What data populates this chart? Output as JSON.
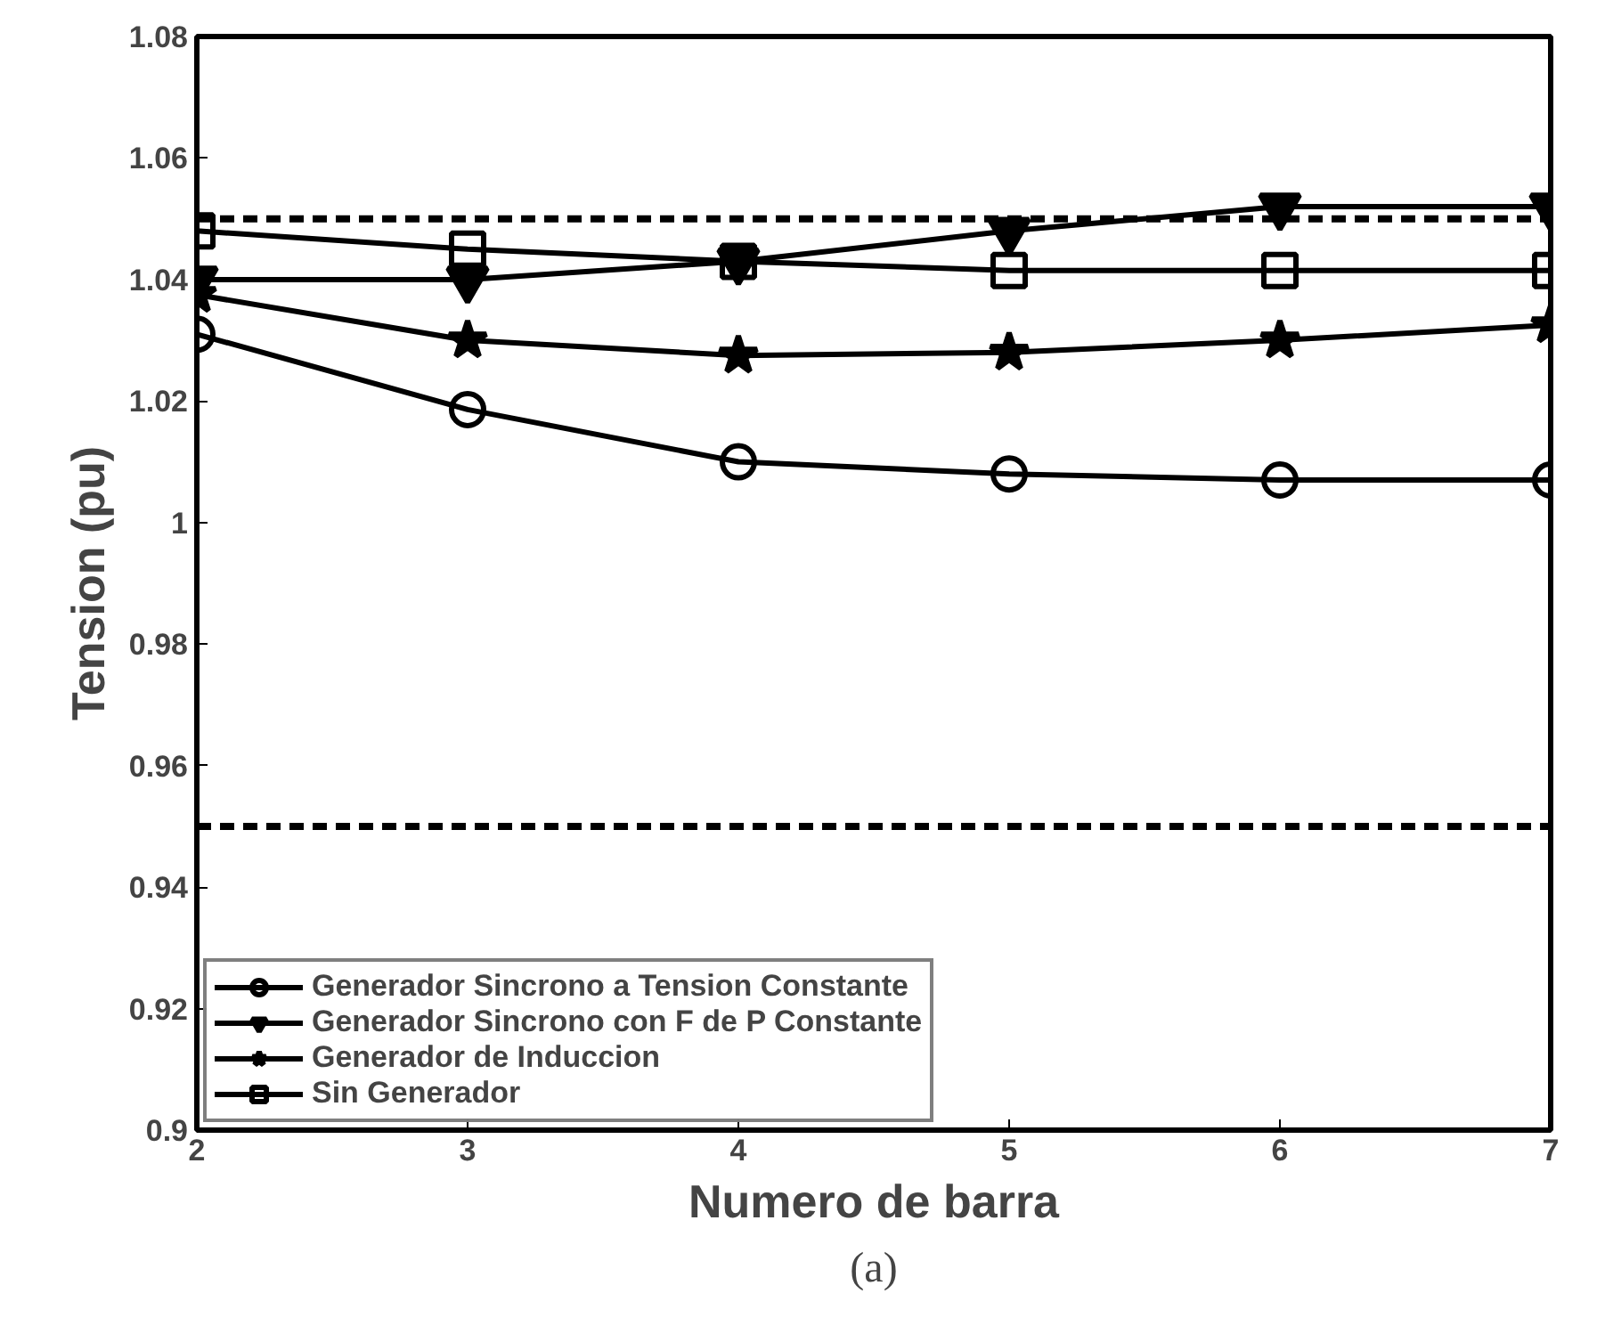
{
  "chart_data": {
    "type": "line",
    "x": [
      2,
      3,
      4,
      5,
      6,
      7
    ],
    "xlim": [
      2,
      7
    ],
    "xticks": [
      2,
      3,
      4,
      5,
      6,
      7
    ],
    "ylim": [
      0.9,
      1.08
    ],
    "yticks": [
      0.9,
      0.92,
      0.94,
      0.96,
      0.98,
      1,
      1.02,
      1.04,
      1.06,
      1.08
    ],
    "xlabel": "Numero de barra",
    "ylabel": "Tension (pu)",
    "annotations": [
      "(a)"
    ],
    "grid": false,
    "legend": "bottom left",
    "ref_lines": [
      {
        "axis": "y",
        "value": 1.05,
        "line_style": "dashed",
        "color": "#000000"
      },
      {
        "axis": "y",
        "value": 0.95,
        "line_style": "dashed",
        "color": "#000000"
      }
    ],
    "series": [
      {
        "name": "Generador Sincrono a Tension Constante",
        "color": "#000000",
        "marker": "circle",
        "values": [
          1.031,
          1.0186,
          1.01,
          1.008,
          1.007,
          1.007
        ]
      },
      {
        "name": "Generador Sincrono con F de P Constante",
        "color": "#000000",
        "marker": "triangle",
        "values": [
          1.04,
          1.04,
          1.043,
          1.048,
          1.052,
          1.052
        ]
      },
      {
        "name": "Generador de Induccion",
        "color": "#000000",
        "marker": "star",
        "values": [
          1.0375,
          1.03,
          1.0275,
          1.028,
          1.03,
          1.0325
        ]
      },
      {
        "name": "Sin Generador",
        "color": "#000000",
        "marker": "square",
        "values": [
          1.048,
          1.045,
          1.043,
          1.0415,
          1.0415,
          1.0415
        ]
      }
    ]
  }
}
